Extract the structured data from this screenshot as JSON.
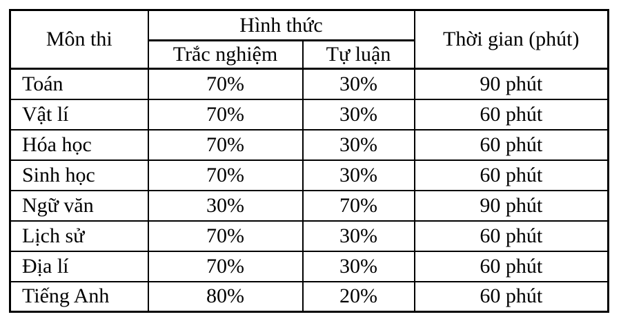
{
  "table": {
    "headers": {
      "subject": "Môn thi",
      "format": "Hình thức",
      "multiple_choice": "Trắc nghiệm",
      "essay": "Tự luận",
      "duration": "Thời gian (phút)"
    },
    "rows": [
      {
        "subject": "Toán",
        "multiple_choice": "70%",
        "essay": "30%",
        "duration": "90 phút"
      },
      {
        "subject": "Vật lí",
        "multiple_choice": "70%",
        "essay": "30%",
        "duration": "60 phút"
      },
      {
        "subject": "Hóa học",
        "multiple_choice": "70%",
        "essay": "30%",
        "duration": "60 phút"
      },
      {
        "subject": "Sinh học",
        "multiple_choice": "70%",
        "essay": "30%",
        "duration": "60 phút"
      },
      {
        "subject": "Ngữ văn",
        "multiple_choice": "30%",
        "essay": "70%",
        "duration": "90 phút"
      },
      {
        "subject": "Lịch sử",
        "multiple_choice": "70%",
        "essay": "30%",
        "duration": "60 phút"
      },
      {
        "subject": "Địa lí",
        "multiple_choice": "70%",
        "essay": "30%",
        "duration": "60 phút"
      },
      {
        "subject": "Tiếng Anh",
        "multiple_choice": "80%",
        "essay": "20%",
        "duration": "60 phút"
      }
    ],
    "colors": {
      "border": "#000000",
      "background": "#ffffff",
      "text": "#000000"
    }
  }
}
